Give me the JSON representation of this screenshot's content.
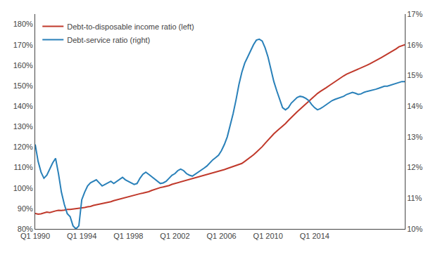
{
  "chart_data": {
    "type": "line",
    "categories": [
      "Q1 1990",
      null,
      null,
      null,
      null,
      null,
      null,
      null,
      null,
      null,
      null,
      null,
      null,
      null,
      null,
      null,
      "Q1 1994",
      null,
      null,
      null,
      null,
      null,
      null,
      null,
      null,
      null,
      null,
      null,
      null,
      null,
      null,
      null,
      "Q1 1998",
      null,
      null,
      null,
      null,
      null,
      null,
      null,
      null,
      null,
      null,
      null,
      null,
      null,
      null,
      null,
      "Q1 2002",
      null,
      null,
      null,
      null,
      null,
      null,
      null,
      null,
      null,
      null,
      null,
      null,
      null,
      null,
      null,
      "Q1 2006",
      null,
      null,
      null,
      null,
      null,
      null,
      null,
      null,
      null,
      null,
      null,
      null,
      null,
      null,
      null,
      "Q1 2010",
      null,
      null,
      null,
      null,
      null,
      null,
      null,
      null,
      null,
      null,
      null,
      null,
      null,
      null,
      null,
      "Q1 2014",
      null,
      null,
      null,
      null,
      null,
      null,
      null,
      null,
      null,
      null,
      null,
      null,
      null,
      null,
      null,
      null,
      null,
      null,
      null,
      null,
      null,
      null,
      null,
      null,
      null,
      null,
      null,
      null,
      null,
      null,
      null
    ],
    "series": [
      {
        "name": "Debt-to-disposable income ratio (left)",
        "color": "#C0392B",
        "values": [
          0.876,
          0.872,
          0.874,
          0.878,
          0.882,
          0.88,
          0.885,
          0.888,
          0.891,
          0.89,
          0.892,
          0.895,
          0.895,
          0.897,
          0.898,
          0.9,
          0.901,
          0.905,
          0.908,
          0.91,
          0.915,
          0.918,
          0.92,
          0.925,
          0.928,
          0.93,
          0.933,
          0.938,
          0.942,
          0.945,
          0.948,
          0.952,
          0.958,
          0.962,
          0.965,
          0.968,
          0.972,
          0.975,
          0.978,
          0.982,
          0.988,
          0.993,
          0.998,
          1.002,
          1.005,
          1.008,
          1.012,
          1.018,
          1.022,
          1.025,
          1.028,
          1.032,
          1.036,
          1.04,
          1.044,
          1.048,
          1.052,
          1.056,
          1.06,
          1.064,
          1.068,
          1.072,
          1.076,
          1.08,
          1.085,
          1.09,
          1.095,
          1.1,
          1.105,
          1.11,
          1.115,
          1.12,
          1.13,
          1.14,
          1.15,
          1.162,
          1.175,
          1.188,
          1.202,
          1.218,
          1.235,
          1.25,
          1.265,
          1.278,
          1.29,
          1.302,
          1.315,
          1.33,
          1.345,
          1.358,
          1.372,
          1.385,
          1.398,
          1.412,
          1.425,
          1.438,
          1.45,
          1.462,
          1.472,
          1.48,
          1.49,
          1.5,
          1.51,
          1.52,
          1.53,
          1.54,
          1.548,
          1.556,
          1.562,
          1.568,
          1.574,
          1.58,
          1.587,
          1.593,
          1.6,
          1.607,
          1.614,
          1.622,
          1.63,
          1.638,
          1.646,
          1.654,
          1.662,
          1.67,
          1.68,
          1.69,
          1.695,
          1.7
        ]
      },
      {
        "name": "Debt-service ratio (right)",
        "color": "#2980B9",
        "axis": "y2",
        "values": [
          0.1275,
          0.122,
          0.1185,
          0.1165,
          0.1175,
          0.1195,
          0.1215,
          0.123,
          0.118,
          0.112,
          0.108,
          0.105,
          0.104,
          0.101,
          0.1,
          0.101,
          0.1095,
          0.112,
          0.114,
          0.115,
          0.1155,
          0.116,
          0.115,
          0.114,
          0.1145,
          0.115,
          0.1155,
          0.1148,
          0.1155,
          0.1162,
          0.1168,
          0.116,
          0.1155,
          0.115,
          0.1145,
          0.1148,
          0.1165,
          0.1178,
          0.1185,
          0.1178,
          0.117,
          0.1162,
          0.1155,
          0.1148,
          0.115,
          0.1155,
          0.1165,
          0.1175,
          0.118,
          0.119,
          0.1195,
          0.119,
          0.118,
          0.1175,
          0.1172,
          0.1178,
          0.1185,
          0.1192,
          0.1198,
          0.1205,
          0.1215,
          0.1225,
          0.1232,
          0.124,
          0.1255,
          0.1275,
          0.13,
          0.1335,
          0.1375,
          0.142,
          0.147,
          0.151,
          0.154,
          0.156,
          0.158,
          0.16,
          0.1615,
          0.1618,
          0.1612,
          0.159,
          0.156,
          0.152,
          0.148,
          0.145,
          0.142,
          0.1395,
          0.1388,
          0.1395,
          0.141,
          0.142,
          0.1428,
          0.1432,
          0.143,
          0.1425,
          0.1418,
          0.1405,
          0.1395,
          0.1388,
          0.1392,
          0.1398,
          0.1405,
          0.1412,
          0.1418,
          0.1422,
          0.1425,
          0.1428,
          0.1432,
          0.1438,
          0.1442,
          0.1445,
          0.1442,
          0.1438,
          0.144,
          0.1445,
          0.1448,
          0.145,
          0.1452,
          0.1455,
          0.1458,
          0.1462,
          0.1465,
          0.1465,
          0.1468,
          0.1472,
          0.1475,
          0.1478,
          0.148,
          0.148
        ]
      }
    ],
    "ylim": [
      0.8,
      1.85
    ],
    "yticks": [
      {
        "value": 0.8,
        "label": "80%"
      },
      {
        "value": 0.9,
        "label": "90%"
      },
      {
        "value": 1.0,
        "label": "100%"
      },
      {
        "value": 1.1,
        "label": "110%"
      },
      {
        "value": 1.2,
        "label": "120%"
      },
      {
        "value": 1.3,
        "label": "130%"
      },
      {
        "value": 1.4,
        "label": "140%"
      },
      {
        "value": 1.5,
        "label": "150%"
      },
      {
        "value": 1.6,
        "label": "160%"
      },
      {
        "value": 1.7,
        "label": "170%"
      },
      {
        "value": 1.8,
        "label": "180%"
      }
    ],
    "y2lim": [
      0.1,
      0.17
    ],
    "y2ticks": [
      {
        "value": 0.1,
        "label": "10%"
      },
      {
        "value": 0.11,
        "label": "11%"
      },
      {
        "value": 0.12,
        "label": "12%"
      },
      {
        "value": 0.13,
        "label": "13%"
      },
      {
        "value": 0.14,
        "label": "14%"
      },
      {
        "value": 0.15,
        "label": "15%"
      },
      {
        "value": 0.16,
        "label": "16%"
      },
      {
        "value": 0.17,
        "label": "17%"
      }
    ],
    "grid": false,
    "legend": "upper left"
  }
}
